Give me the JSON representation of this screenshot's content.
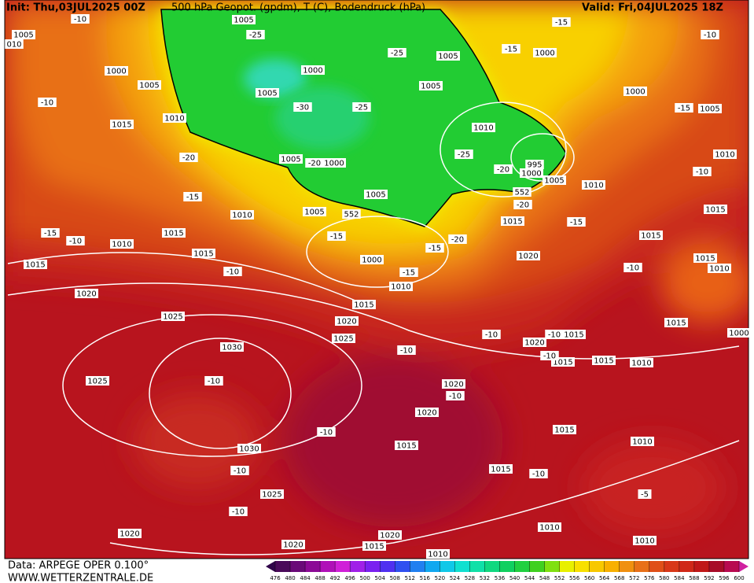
{
  "header": {
    "init": "Init: Thu,03JUL2025 00Z",
    "title": "500 hPa Geopot. (gpdm), T (C), Bodendruck (hPa)",
    "valid": "Valid: Fri,04JUL2025 18Z"
  },
  "footer": {
    "data": "Data: ARPEGE OPER 0.100°",
    "site": "WWW.WETTERZENTRALE.DE"
  },
  "colorbar": {
    "ticks": [
      476,
      480,
      484,
      488,
      492,
      496,
      500,
      504,
      508,
      512,
      516,
      520,
      524,
      528,
      532,
      536,
      540,
      544,
      548,
      552,
      556,
      560,
      564,
      568,
      572,
      576,
      580,
      584,
      588,
      592,
      596,
      600
    ],
    "colors": [
      "#4a0a5a",
      "#6a0a78",
      "#8c0a96",
      "#b010b8",
      "#d020d8",
      "#a020e8",
      "#7a20f0",
      "#5030f0",
      "#3050f0",
      "#2080f0",
      "#10a8f0",
      "#10c8e8",
      "#10e0d0",
      "#10e0a8",
      "#10d880",
      "#10d060",
      "#20d040",
      "#40d020",
      "#80e010",
      "#e8f000",
      "#f8e000",
      "#f8c800",
      "#f8b000",
      "#f09010",
      "#e87018",
      "#e05018",
      "#d83818",
      "#d02818",
      "#c01818",
      "#a80c28",
      "#b80a50"
    ],
    "end_colors": [
      "#30054a",
      "#d020a0"
    ]
  },
  "labels": [
    "1005",
    "-25",
    "1005",
    "010",
    "-10",
    "1000",
    "1005",
    "-10",
    "1015",
    "1010",
    "1005",
    "1000",
    "-30",
    "-25",
    "-25",
    "1005",
    "1005",
    "-15",
    "1000",
    "-15",
    "-10",
    "1000",
    "-15",
    "1005",
    "1010",
    "-25",
    "-20",
    "995",
    "1000",
    "1005",
    "1010",
    "552",
    "-20",
    "1010",
    "-10",
    "1005",
    "-20",
    "1000",
    "1005",
    "1005",
    "552",
    "-20",
    "-15",
    "1010",
    "1015",
    "-15",
    "-10",
    "1010",
    "1015",
    "1015",
    "-10",
    "-15",
    "1000",
    "-15",
    "-15",
    "-20",
    "1015",
    "-15",
    "1020",
    "1015",
    "1015",
    "1015",
    "1010",
    "-10",
    "1010",
    "1015",
    "1020",
    "1025",
    "1020",
    "1025",
    "-10",
    "-10",
    "1020",
    "-10",
    "1015",
    "1015",
    "1000",
    "1030",
    "1025",
    "-10",
    "1015",
    "1015",
    "-10",
    "1010",
    "1020",
    "-10",
    "1020",
    "-10",
    "1015",
    "1015",
    "1030",
    "1010",
    "-10",
    "1015",
    "-10",
    "1025",
    "-5",
    "-10",
    "1010",
    "1020",
    "1020",
    "1010",
    "1020",
    "1015",
    "1010"
  ]
}
